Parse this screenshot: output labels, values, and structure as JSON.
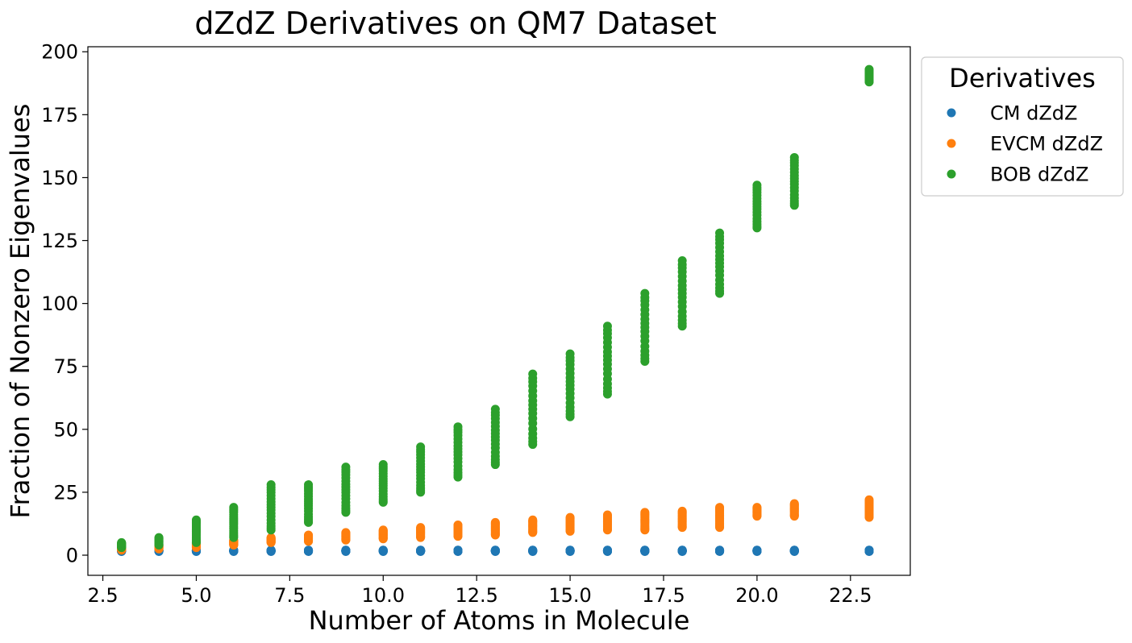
{
  "chart_data": {
    "type": "scatter",
    "title": "dZdZ Derivatives on QM7 Dataset",
    "xlabel": "Number of Atoms in Molecule",
    "ylabel": "Fraction of Nonzero Eigenvalues",
    "xlim": [
      2.1,
      24.1
    ],
    "ylim": [
      -8,
      202
    ],
    "xticks": [
      2.5,
      5.0,
      7.5,
      10.0,
      12.5,
      15.0,
      17.5,
      20.0,
      22.5
    ],
    "xtick_labels": [
      "2.5",
      "5.0",
      "7.5",
      "10.0",
      "12.5",
      "15.0",
      "17.5",
      "20.0",
      "22.5"
    ],
    "yticks": [
      0,
      25,
      50,
      75,
      100,
      125,
      150,
      175,
      200
    ],
    "ytick_labels": [
      "0",
      "25",
      "50",
      "75",
      "100",
      "125",
      "150",
      "175",
      "200"
    ],
    "grid": false,
    "legend": {
      "title": "Derivatives",
      "position": "outside-top-right"
    },
    "series": [
      {
        "name": "CM dZdZ",
        "color": "#1f77b4",
        "ranges": [
          {
            "x": 3,
            "min": 1.5,
            "max": 2
          },
          {
            "x": 4,
            "min": 1.5,
            "max": 2
          },
          {
            "x": 5,
            "min": 1.5,
            "max": 2
          },
          {
            "x": 6,
            "min": 1.5,
            "max": 2
          },
          {
            "x": 7,
            "min": 1.5,
            "max": 2
          },
          {
            "x": 8,
            "min": 1.5,
            "max": 2
          },
          {
            "x": 9,
            "min": 1.5,
            "max": 2
          },
          {
            "x": 10,
            "min": 1.5,
            "max": 2
          },
          {
            "x": 11,
            "min": 1.5,
            "max": 2
          },
          {
            "x": 12,
            "min": 1.5,
            "max": 2
          },
          {
            "x": 13,
            "min": 1.5,
            "max": 2
          },
          {
            "x": 14,
            "min": 1.5,
            "max": 2
          },
          {
            "x": 15,
            "min": 1.5,
            "max": 2
          },
          {
            "x": 16,
            "min": 1.5,
            "max": 2
          },
          {
            "x": 17,
            "min": 1.5,
            "max": 2
          },
          {
            "x": 18,
            "min": 1.5,
            "max": 2
          },
          {
            "x": 19,
            "min": 1.5,
            "max": 2
          },
          {
            "x": 20,
            "min": 1.5,
            "max": 2
          },
          {
            "x": 21,
            "min": 1.5,
            "max": 2
          },
          {
            "x": 23,
            "min": 1.5,
            "max": 2
          }
        ]
      },
      {
        "name": "EVCM dZdZ",
        "color": "#ff7f0e",
        "ranges": [
          {
            "x": 3,
            "min": 2,
            "max": 3
          },
          {
            "x": 4,
            "min": 2.5,
            "max": 4
          },
          {
            "x": 5,
            "min": 3,
            "max": 5
          },
          {
            "x": 6,
            "min": 4,
            "max": 6
          },
          {
            "x": 7,
            "min": 5,
            "max": 7
          },
          {
            "x": 8,
            "min": 5.5,
            "max": 8
          },
          {
            "x": 9,
            "min": 6,
            "max": 9
          },
          {
            "x": 10,
            "min": 6.5,
            "max": 10
          },
          {
            "x": 11,
            "min": 7,
            "max": 11
          },
          {
            "x": 12,
            "min": 7.5,
            "max": 12
          },
          {
            "x": 13,
            "min": 8,
            "max": 13
          },
          {
            "x": 14,
            "min": 9,
            "max": 14
          },
          {
            "x": 15,
            "min": 9.5,
            "max": 15
          },
          {
            "x": 16,
            "min": 10,
            "max": 16
          },
          {
            "x": 17,
            "min": 10,
            "max": 17
          },
          {
            "x": 18,
            "min": 11,
            "max": 17.5
          },
          {
            "x": 19,
            "min": 11,
            "max": 19
          },
          {
            "x": 20,
            "min": 15.5,
            "max": 19
          },
          {
            "x": 21,
            "min": 15.5,
            "max": 20.5
          },
          {
            "x": 23,
            "min": 15,
            "max": 22
          }
        ]
      },
      {
        "name": "BOB dZdZ",
        "color": "#2ca02c",
        "ranges": [
          {
            "x": 3,
            "min": 3,
            "max": 5
          },
          {
            "x": 4,
            "min": 4,
            "max": 7
          },
          {
            "x": 5,
            "min": 5,
            "max": 14
          },
          {
            "x": 6,
            "min": 7,
            "max": 19
          },
          {
            "x": 7,
            "min": 10,
            "max": 28
          },
          {
            "x": 8,
            "min": 13,
            "max": 28
          },
          {
            "x": 9,
            "min": 17,
            "max": 35
          },
          {
            "x": 10,
            "min": 21,
            "max": 36
          },
          {
            "x": 11,
            "min": 25,
            "max": 43
          },
          {
            "x": 12,
            "min": 31,
            "max": 51
          },
          {
            "x": 13,
            "min": 36,
            "max": 58
          },
          {
            "x": 14,
            "min": 44,
            "max": 72
          },
          {
            "x": 15,
            "min": 55,
            "max": 80
          },
          {
            "x": 16,
            "min": 64,
            "max": 91
          },
          {
            "x": 17,
            "min": 77,
            "max": 104
          },
          {
            "x": 18,
            "min": 91,
            "max": 117
          },
          {
            "x": 19,
            "min": 104,
            "max": 128
          },
          {
            "x": 20,
            "min": 130,
            "max": 147
          },
          {
            "x": 21,
            "min": 139,
            "max": 158
          },
          {
            "x": 23,
            "min": 188,
            "max": 193
          }
        ]
      }
    ]
  }
}
